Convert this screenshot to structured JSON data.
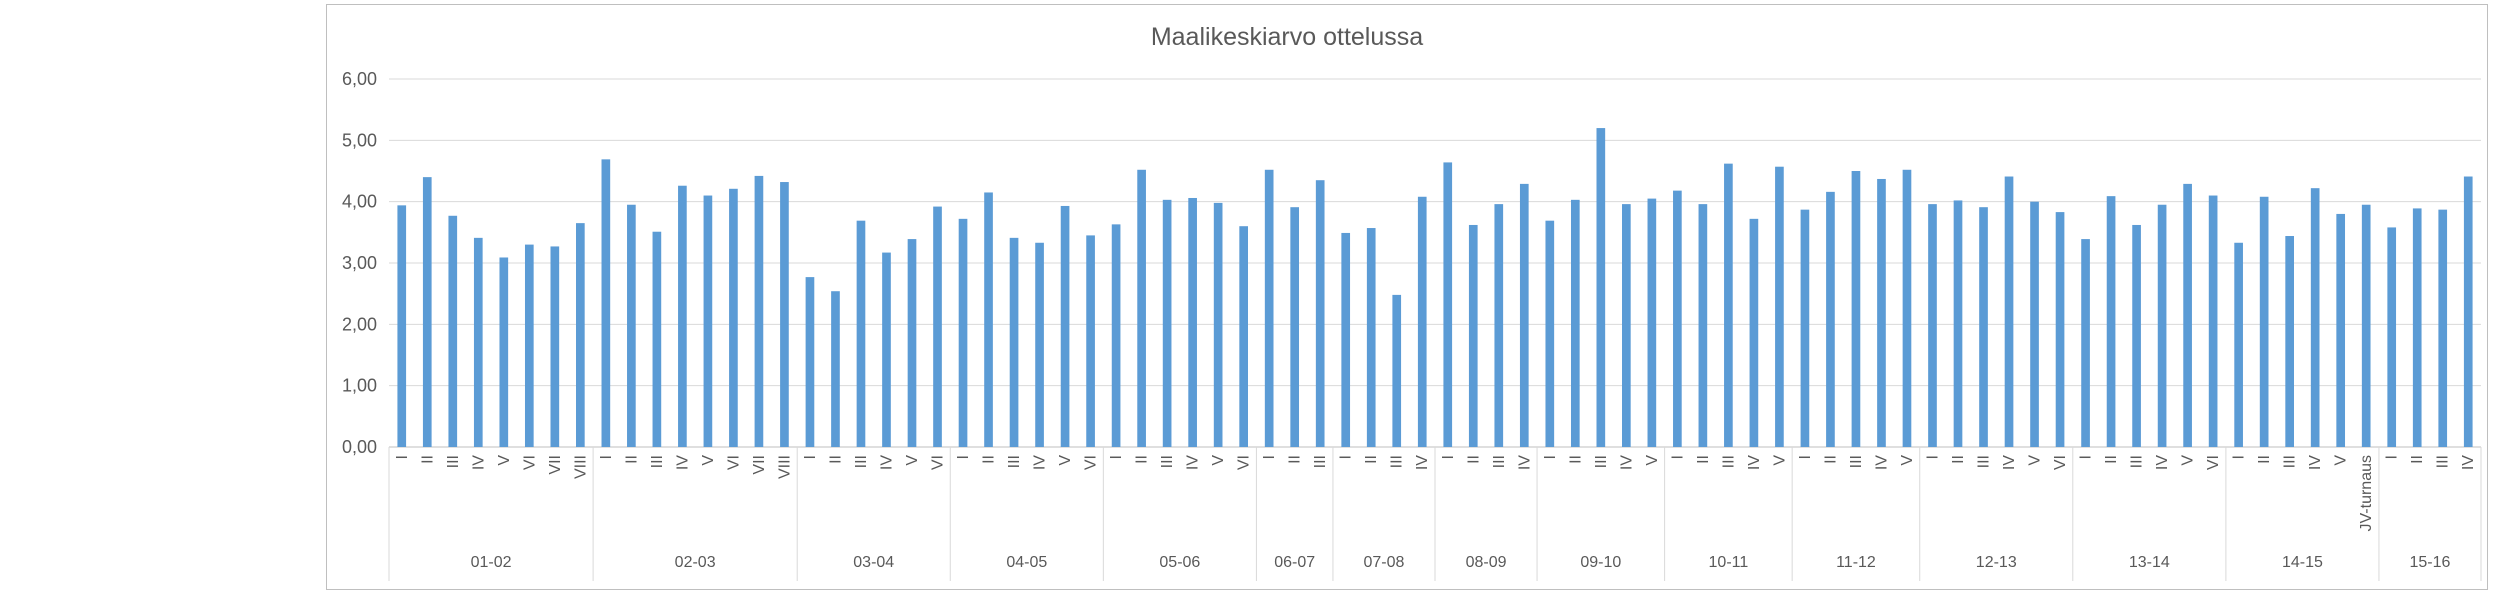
{
  "chart_data": {
    "type": "bar",
    "title": "Maalikeskiarvo ottelussa",
    "xlabel": "",
    "ylabel": "",
    "ylim": [
      0,
      6
    ],
    "yticks": [
      "0,00",
      "1,00",
      "2,00",
      "3,00",
      "4,00",
      "5,00",
      "6,00"
    ],
    "grid": true,
    "legend": "none",
    "bar_color": "#5b9bd5",
    "groups": [
      {
        "name": "01-02",
        "categories": [
          "I",
          "II",
          "III",
          "IV",
          "V",
          "VI",
          "VII",
          "VIII"
        ],
        "values": [
          3.94,
          4.4,
          3.77,
          3.41,
          3.09,
          3.3,
          3.27,
          3.65
        ]
      },
      {
        "name": "02-03",
        "categories": [
          "I",
          "II",
          "III",
          "IV",
          "V",
          "VI",
          "VII",
          "VIII"
        ],
        "values": [
          4.69,
          3.95,
          3.51,
          4.26,
          4.1,
          4.21,
          4.42,
          4.32
        ]
      },
      {
        "name": "03-04",
        "categories": [
          "I",
          "II",
          "III",
          "IV",
          "V",
          "VI"
        ],
        "values": [
          2.77,
          2.54,
          3.69,
          3.17,
          3.39,
          3.92
        ]
      },
      {
        "name": "04-05",
        "categories": [
          "I",
          "II",
          "III",
          "IV",
          "V",
          "VI"
        ],
        "values": [
          3.72,
          4.15,
          3.41,
          3.33,
          3.93,
          3.45
        ]
      },
      {
        "name": "05-06",
        "categories": [
          "I",
          "II",
          "III",
          "IV",
          "V",
          "VI"
        ],
        "values": [
          3.63,
          4.52,
          4.03,
          4.06,
          3.98,
          3.6
        ]
      },
      {
        "name": "06-07",
        "categories": [
          "I",
          "II",
          "III"
        ],
        "values": [
          4.52,
          3.91,
          4.35
        ]
      },
      {
        "name": "07-08",
        "categories": [
          "I",
          "II",
          "III",
          "IV"
        ],
        "values": [
          3.49,
          3.57,
          2.48,
          4.08
        ]
      },
      {
        "name": "08-09",
        "categories": [
          "I",
          "II",
          "III",
          "IV"
        ],
        "values": [
          4.64,
          3.62,
          3.96,
          4.29
        ]
      },
      {
        "name": "09-10",
        "categories": [
          "I",
          "II",
          "III",
          "IV",
          "V"
        ],
        "values": [
          3.69,
          4.03,
          5.2,
          3.96,
          4.05
        ]
      },
      {
        "name": "10-11",
        "categories": [
          "I",
          "II",
          "III",
          "IV",
          "V"
        ],
        "values": [
          4.18,
          3.96,
          4.62,
          3.72,
          4.57
        ]
      },
      {
        "name": "11-12",
        "categories": [
          "I",
          "II",
          "III",
          "IV",
          "V"
        ],
        "values": [
          3.87,
          4.16,
          4.5,
          4.37,
          4.52
        ]
      },
      {
        "name": "12-13",
        "categories": [
          "I",
          "II",
          "III",
          "IV",
          "V",
          "VI"
        ],
        "values": [
          3.96,
          4.02,
          3.91,
          4.41,
          4.0,
          3.83
        ]
      },
      {
        "name": "13-14",
        "categories": [
          "I",
          "II",
          "III",
          "IV",
          "V",
          "VI"
        ],
        "values": [
          3.39,
          4.09,
          3.62,
          3.95,
          4.29,
          4.1
        ]
      },
      {
        "name": "14-15",
        "categories": [
          "I",
          "II",
          "III",
          "IV",
          "V",
          "JV-turnaus"
        ],
        "values": [
          3.33,
          4.08,
          3.44,
          4.22,
          3.8,
          3.95
        ]
      },
      {
        "name": "15-16",
        "categories": [
          "I",
          "II",
          "III",
          "IV"
        ],
        "values": [
          3.58,
          3.89,
          3.87,
          4.41
        ]
      }
    ]
  }
}
